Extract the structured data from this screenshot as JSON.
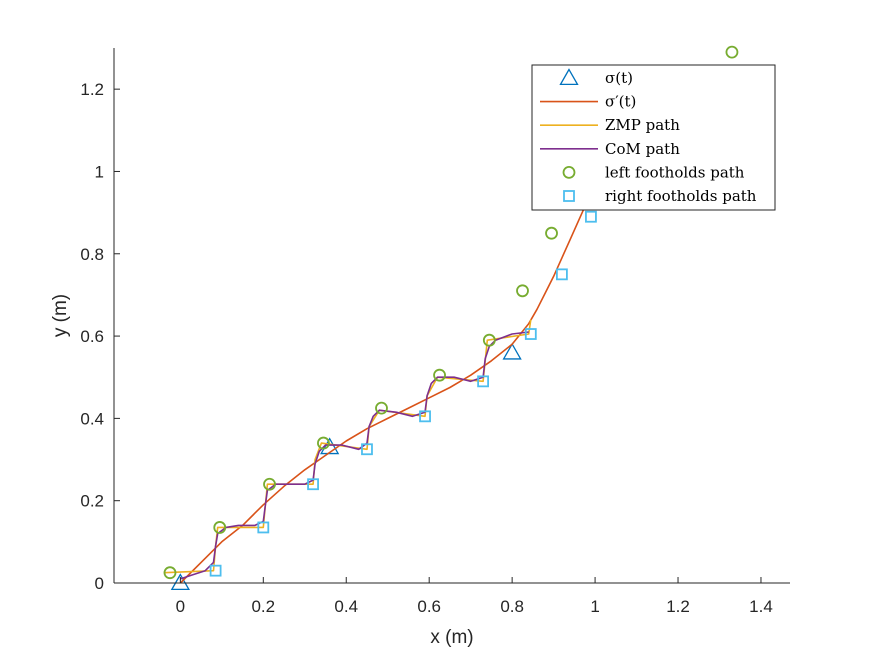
{
  "chart_data": {
    "type": "line",
    "xlabel": "x (m)",
    "ylabel": "y (m)",
    "xlim": [
      -0.16,
      1.47
    ],
    "ylim": [
      0,
      1.3
    ],
    "xticks": [
      0,
      0.2,
      0.4,
      0.6,
      0.8,
      1,
      1.2,
      1.4
    ],
    "yticks": [
      0,
      0.2,
      0.4,
      0.6,
      0.8,
      1,
      1.2
    ],
    "xtick_labels": [
      "0",
      "0.2",
      "0.4",
      "0.6",
      "0.8",
      "1",
      "1.2",
      "1.4"
    ],
    "ytick_labels": [
      "0",
      "0.2",
      "0.4",
      "0.6",
      "0.8",
      "1",
      "1.2"
    ],
    "grid": false,
    "legend_position": "top-right",
    "series": [
      {
        "name": "σ(t)",
        "kind": "marker",
        "marker": "triangle",
        "color": "#0072BD",
        "x": [
          0.0,
          0.36,
          0.8
        ],
        "y": [
          0.0,
          0.33,
          0.56
        ]
      },
      {
        "name": "σ′(t)",
        "kind": "line",
        "color": "#D95319",
        "x": [
          0.0,
          0.05,
          0.1,
          0.15,
          0.2,
          0.25,
          0.3,
          0.35,
          0.4,
          0.45,
          0.5,
          0.55,
          0.6,
          0.65,
          0.7,
          0.75,
          0.8,
          0.82,
          0.84,
          0.86,
          0.88,
          0.9,
          0.92,
          0.94,
          0.96,
          0.98,
          1.0
        ],
        "y": [
          0.0,
          0.05,
          0.1,
          0.14,
          0.19,
          0.235,
          0.275,
          0.31,
          0.345,
          0.375,
          0.4,
          0.425,
          0.45,
          0.475,
          0.505,
          0.54,
          0.58,
          0.605,
          0.63,
          0.665,
          0.705,
          0.745,
          0.79,
          0.835,
          0.88,
          0.925,
          0.97
        ]
      },
      {
        "name": "ZMP path",
        "kind": "line",
        "color": "#EDB120",
        "x": [
          -0.04,
          0.08,
          0.085,
          0.09,
          0.2,
          0.205,
          0.21,
          0.32,
          0.325,
          0.34,
          0.45,
          0.455,
          0.48,
          0.59,
          0.595,
          0.62,
          0.73,
          0.735,
          0.74,
          0.84,
          0.845
        ],
        "y": [
          0.025,
          0.03,
          0.09,
          0.135,
          0.135,
          0.19,
          0.24,
          0.24,
          0.3,
          0.34,
          0.325,
          0.38,
          0.42,
          0.405,
          0.455,
          0.5,
          0.49,
          0.54,
          0.59,
          0.605,
          0.64
        ]
      },
      {
        "name": "CoM path",
        "kind": "line",
        "color": "#7E2F8E",
        "x": [
          0.0,
          0.03,
          0.06,
          0.08,
          0.085,
          0.09,
          0.11,
          0.14,
          0.18,
          0.2,
          0.205,
          0.21,
          0.23,
          0.26,
          0.3,
          0.32,
          0.325,
          0.335,
          0.35,
          0.39,
          0.43,
          0.45,
          0.455,
          0.465,
          0.48,
          0.52,
          0.56,
          0.59,
          0.595,
          0.605,
          0.62,
          0.66,
          0.7,
          0.73,
          0.735,
          0.745,
          0.76,
          0.8,
          0.84
        ],
        "y": [
          0.01,
          0.02,
          0.03,
          0.05,
          0.09,
          0.12,
          0.135,
          0.14,
          0.14,
          0.15,
          0.19,
          0.225,
          0.24,
          0.24,
          0.24,
          0.25,
          0.29,
          0.32,
          0.335,
          0.335,
          0.325,
          0.34,
          0.38,
          0.405,
          0.42,
          0.415,
          0.405,
          0.415,
          0.455,
          0.485,
          0.5,
          0.5,
          0.49,
          0.5,
          0.545,
          0.575,
          0.59,
          0.605,
          0.61
        ]
      },
      {
        "name": "left footholds path",
        "kind": "marker",
        "marker": "circle",
        "color": "#77AC30",
        "x": [
          -0.025,
          0.095,
          0.215,
          0.345,
          0.485,
          0.625,
          0.745,
          0.825,
          0.895,
          1.33
        ],
        "y": [
          0.025,
          0.135,
          0.24,
          0.34,
          0.425,
          0.505,
          0.59,
          0.71,
          0.85,
          1.29
        ]
      },
      {
        "name": "right footholds path",
        "kind": "marker",
        "marker": "square",
        "color": "#4DBEEE",
        "x": [
          0.085,
          0.2,
          0.32,
          0.45,
          0.59,
          0.73,
          0.845,
          0.92,
          0.99
        ],
        "y": [
          0.03,
          0.135,
          0.24,
          0.325,
          0.405,
          0.49,
          0.605,
          0.75,
          0.89
        ]
      }
    ]
  }
}
